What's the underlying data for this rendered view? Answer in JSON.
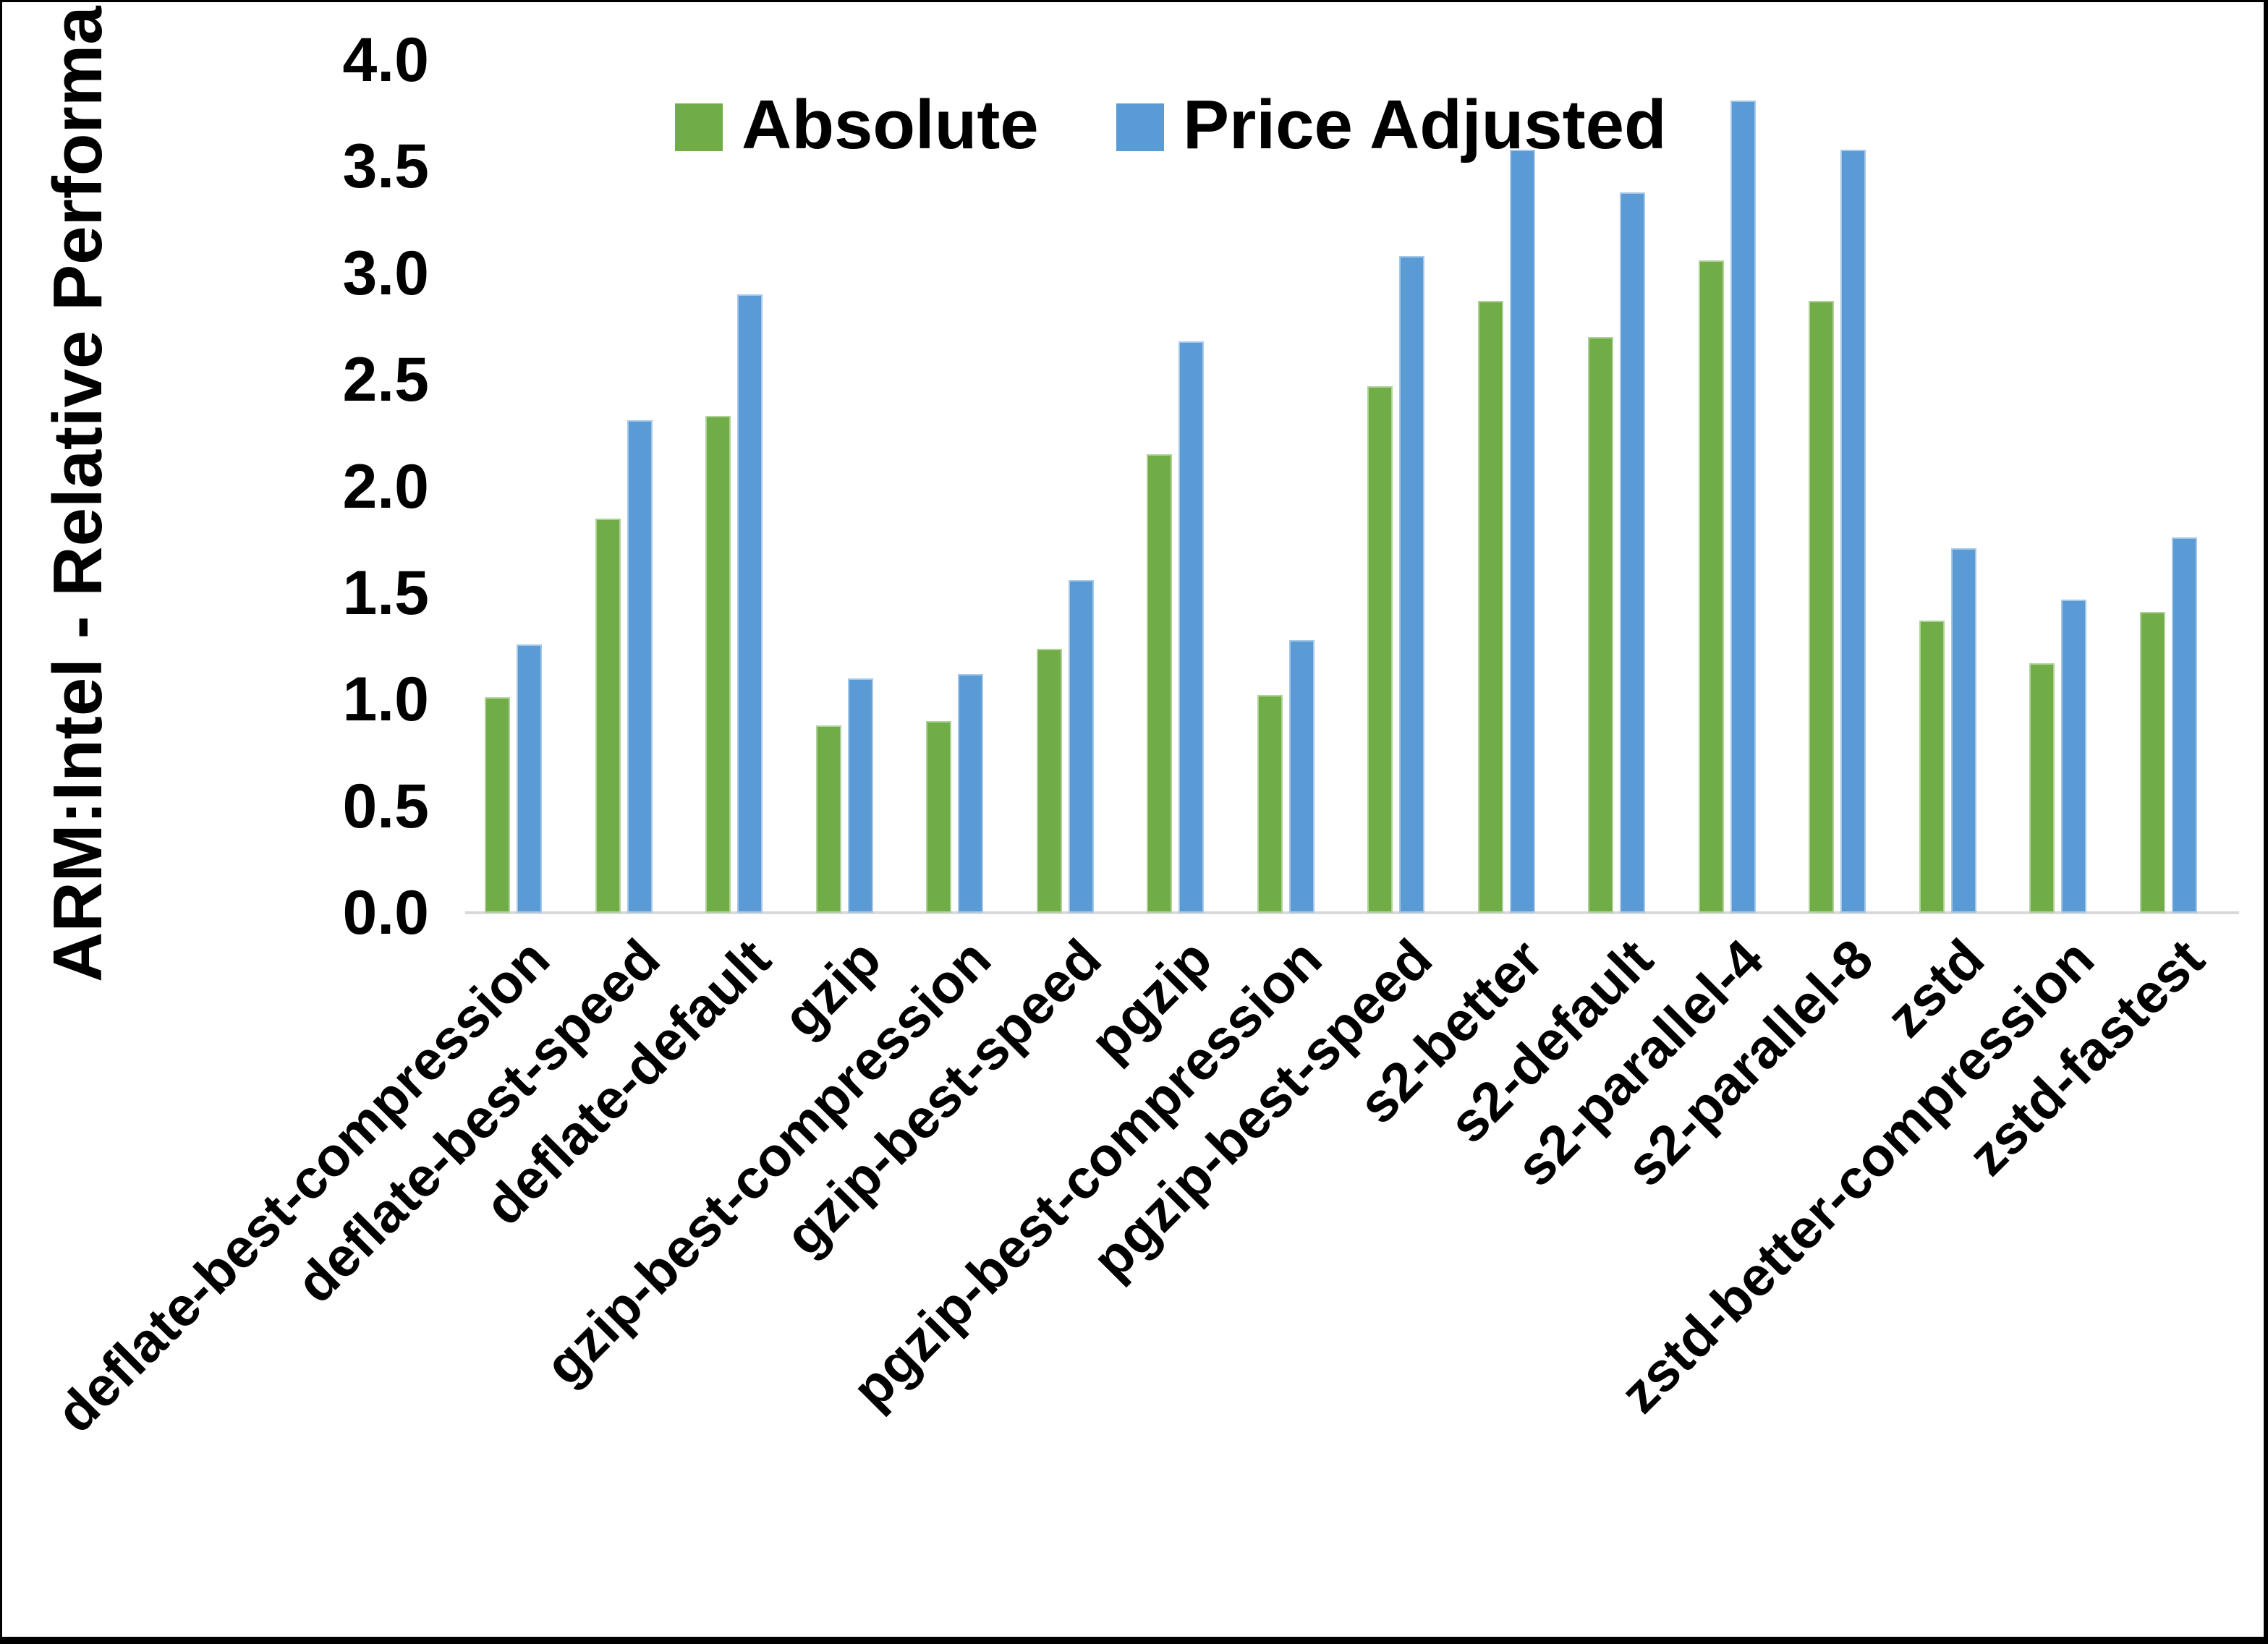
{
  "chart_data": {
    "type": "bar",
    "title": "",
    "ylabel": "ARM:Intel - Relative Performance",
    "xlabel": "",
    "ylim": [
      0.0,
      4.0
    ],
    "ytick_step": 0.5,
    "yticks": [
      "0.0",
      "0.5",
      "1.0",
      "1.5",
      "2.0",
      "2.5",
      "3.0",
      "3.5",
      "4.0"
    ],
    "grid": false,
    "legend_position": "top-center",
    "categories": [
      "deflate-best-compression",
      "deflate-best-speed",
      "deflate-default",
      "gzip",
      "gzip-best-compression",
      "gzip-best-speed",
      "pgzip",
      "pgzip-best-compression",
      "pgzip-best-speed",
      "s2-better",
      "s2-default",
      "s2-parallel-4",
      "s2-parallel-8",
      "zstd",
      "zstd-better-compression",
      "zstd-fastest"
    ],
    "series": [
      {
        "name": "Absolute",
        "color": "#70AD47",
        "values": [
          1.01,
          1.85,
          2.33,
          0.88,
          0.9,
          1.24,
          2.15,
          1.02,
          2.47,
          2.87,
          2.7,
          3.06,
          2.87,
          1.37,
          1.17,
          1.41
        ]
      },
      {
        "name": "Price Adjusted",
        "color": "#5B9BD5",
        "values": [
          1.26,
          2.31,
          2.9,
          1.1,
          1.12,
          1.56,
          2.68,
          1.28,
          3.08,
          3.58,
          3.38,
          3.81,
          3.58,
          1.71,
          1.47,
          1.76
        ]
      }
    ],
    "colors": {
      "axis_line": "#D9D9D9",
      "text": "#000000",
      "background": "#FFFFFF",
      "frame_border": "#000000"
    }
  }
}
